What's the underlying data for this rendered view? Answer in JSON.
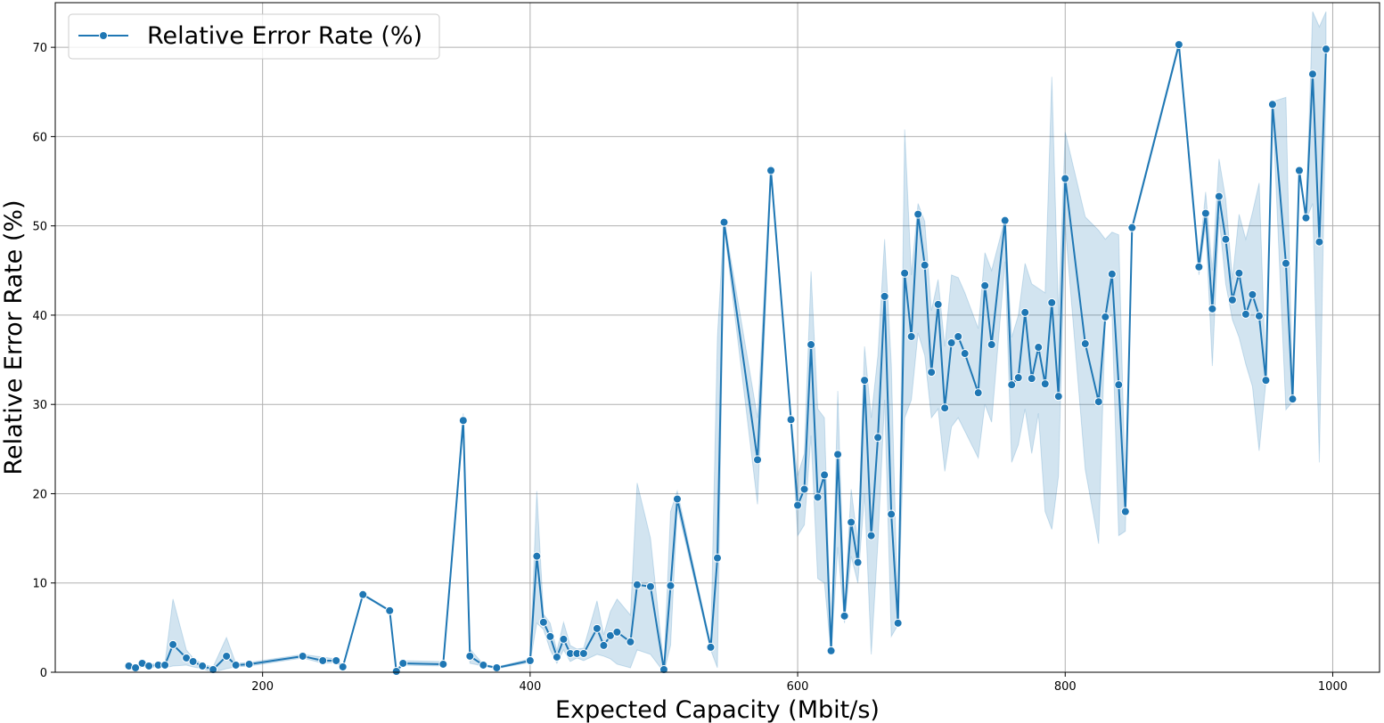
{
  "chart_data": {
    "type": "line",
    "title": "",
    "xlabel": "Expected Capacity (Mbit/s)",
    "ylabel": "Relative Error Rate (%)",
    "xlim": [
      45,
      1035
    ],
    "ylim": [
      0,
      75
    ],
    "xticks": [
      200,
      400,
      600,
      800,
      1000
    ],
    "yticks": [
      0,
      10,
      20,
      30,
      40,
      50,
      60,
      70
    ],
    "grid": true,
    "legend_position": "top-left",
    "colors": {
      "line": "#1f77b4",
      "band": "#1f77b4",
      "grid": "#b0b0b0"
    },
    "series": [
      {
        "name": "Relative Error Rate (%)",
        "points": [
          [
            100,
            0.7
          ],
          [
            105,
            0.5
          ],
          [
            110,
            1.0
          ],
          [
            115,
            0.7
          ],
          [
            122,
            0.8
          ],
          [
            127,
            0.8
          ],
          [
            133,
            3.1
          ],
          [
            143,
            1.6
          ],
          [
            148,
            1.2
          ],
          [
            155,
            0.7
          ],
          [
            163,
            0.3
          ],
          [
            173,
            1.8
          ],
          [
            180,
            0.8
          ],
          [
            190,
            0.9
          ],
          [
            230,
            1.8
          ],
          [
            245,
            1.3
          ],
          [
            255,
            1.3
          ],
          [
            260,
            0.6
          ],
          [
            275,
            8.7
          ],
          [
            295,
            6.9
          ],
          [
            300,
            0.1
          ],
          [
            305,
            1.0
          ],
          [
            335,
            0.9
          ],
          [
            350,
            28.2
          ],
          [
            355,
            1.8
          ],
          [
            365,
            0.8
          ],
          [
            375,
            0.5
          ],
          [
            400,
            1.3
          ],
          [
            405,
            13.0
          ],
          [
            410,
            5.6
          ],
          [
            415,
            4.0
          ],
          [
            420,
            1.7
          ],
          [
            425,
            3.7
          ],
          [
            430,
            2.1
          ],
          [
            435,
            2.1
          ],
          [
            440,
            2.1
          ],
          [
            450,
            4.9
          ],
          [
            455,
            3.0
          ],
          [
            460,
            4.1
          ],
          [
            465,
            4.5
          ],
          [
            475,
            3.4
          ],
          [
            480,
            9.8
          ],
          [
            490,
            9.6
          ],
          [
            500,
            0.3
          ],
          [
            505,
            9.7
          ],
          [
            510,
            19.4
          ],
          [
            535,
            2.8
          ],
          [
            540,
            12.8
          ],
          [
            545,
            50.4
          ],
          [
            570,
            23.8
          ],
          [
            580,
            56.2
          ],
          [
            595,
            28.3
          ],
          [
            600,
            18.7
          ],
          [
            605,
            20.5
          ],
          [
            610,
            36.7
          ],
          [
            615,
            19.6
          ],
          [
            620,
            22.1
          ],
          [
            625,
            2.4
          ],
          [
            630,
            24.4
          ],
          [
            635,
            6.3
          ],
          [
            640,
            16.8
          ],
          [
            645,
            12.3
          ],
          [
            650,
            32.7
          ],
          [
            655,
            15.3
          ],
          [
            660,
            26.3
          ],
          [
            665,
            42.1
          ],
          [
            670,
            17.7
          ],
          [
            675,
            5.5
          ],
          [
            680,
            44.7
          ],
          [
            685,
            37.6
          ],
          [
            690,
            51.3
          ],
          [
            695,
            45.6
          ],
          [
            700,
            33.6
          ],
          [
            705,
            41.2
          ],
          [
            710,
            29.6
          ],
          [
            715,
            36.9
          ],
          [
            720,
            37.6
          ],
          [
            725,
            35.7
          ],
          [
            735,
            31.3
          ],
          [
            740,
            43.3
          ],
          [
            745,
            36.7
          ],
          [
            755,
            50.6
          ],
          [
            760,
            32.2
          ],
          [
            765,
            33.0
          ],
          [
            770,
            40.3
          ],
          [
            775,
            32.9
          ],
          [
            780,
            36.4
          ],
          [
            785,
            32.3
          ],
          [
            790,
            41.4
          ],
          [
            795,
            30.9
          ],
          [
            800,
            55.3
          ],
          [
            815,
            36.8
          ],
          [
            825,
            30.3
          ],
          [
            830,
            39.8
          ],
          [
            835,
            44.6
          ],
          [
            840,
            32.2
          ],
          [
            845,
            18.0
          ],
          [
            850,
            49.8
          ],
          [
            885,
            70.3
          ],
          [
            900,
            45.4
          ],
          [
            905,
            51.4
          ],
          [
            910,
            40.7
          ],
          [
            915,
            53.3
          ],
          [
            920,
            48.5
          ],
          [
            925,
            41.7
          ],
          [
            930,
            44.7
          ],
          [
            935,
            40.1
          ],
          [
            940,
            42.3
          ],
          [
            945,
            39.9
          ],
          [
            950,
            32.7
          ],
          [
            955,
            63.6
          ],
          [
            965,
            45.8
          ],
          [
            970,
            30.6
          ],
          [
            975,
            56.2
          ],
          [
            980,
            50.9
          ],
          [
            985,
            67.0
          ],
          [
            990,
            48.2
          ],
          [
            995,
            69.8
          ]
        ],
        "band": [
          [
            100,
            0.4,
            0.9
          ],
          [
            105,
            0.3,
            0.7
          ],
          [
            110,
            0.6,
            1.2
          ],
          [
            115,
            0.5,
            0.9
          ],
          [
            122,
            0.6,
            1.0
          ],
          [
            127,
            0.5,
            1.0
          ],
          [
            133,
            0.7,
            8.2
          ],
          [
            143,
            0.8,
            2.5
          ],
          [
            148,
            0.6,
            1.6
          ],
          [
            155,
            0.4,
            0.9
          ],
          [
            163,
            0.0,
            0.6
          ],
          [
            173,
            0.4,
            3.9
          ],
          [
            180,
            0.6,
            1.0
          ],
          [
            190,
            0.7,
            1.1
          ],
          [
            230,
            1.6,
            2.0
          ],
          [
            245,
            1.0,
            1.7
          ],
          [
            255,
            1.1,
            1.5
          ],
          [
            260,
            0.5,
            0.7
          ],
          [
            275,
            8.6,
            8.8
          ],
          [
            295,
            6.8,
            7.0
          ],
          [
            300,
            0.0,
            0.2
          ],
          [
            305,
            0.8,
            1.3
          ],
          [
            335,
            0.7,
            1.2
          ],
          [
            350,
            27.5,
            29.0
          ],
          [
            355,
            1.0,
            2.6
          ],
          [
            365,
            0.7,
            0.9
          ],
          [
            375,
            0.4,
            0.6
          ],
          [
            400,
            1.1,
            1.5
          ],
          [
            405,
            5.5,
            20.3
          ],
          [
            410,
            4.8,
            6.5
          ],
          [
            415,
            2.5,
            5.5
          ],
          [
            420,
            1.0,
            2.4
          ],
          [
            425,
            2.5,
            5.6
          ],
          [
            430,
            1.2,
            3.0
          ],
          [
            435,
            1.6,
            2.6
          ],
          [
            440,
            1.3,
            2.7
          ],
          [
            450,
            2.0,
            8.0
          ],
          [
            455,
            1.8,
            4.2
          ],
          [
            460,
            1.5,
            6.8
          ],
          [
            465,
            0.9,
            8.2
          ],
          [
            475,
            0.5,
            6.4
          ],
          [
            480,
            2.5,
            21.2
          ],
          [
            490,
            2.0,
            15.0
          ],
          [
            500,
            0.0,
            0.6
          ],
          [
            505,
            3.0,
            18.0
          ],
          [
            510,
            18.5,
            20.3
          ],
          [
            535,
            2.5,
            3.1
          ],
          [
            540,
            0.5,
            37.5
          ],
          [
            545,
            50.0,
            50.8
          ],
          [
            570,
            18.8,
            28.5
          ],
          [
            580,
            55.5,
            56.8
          ],
          [
            595,
            28.0,
            28.6
          ],
          [
            600,
            15.3,
            22.0
          ],
          [
            605,
            16.5,
            24.5
          ],
          [
            610,
            26.5,
            44.9
          ],
          [
            615,
            10.5,
            29.5
          ],
          [
            620,
            10.0,
            28.5
          ],
          [
            625,
            2.1,
            2.7
          ],
          [
            630,
            14.0,
            31.5
          ],
          [
            635,
            5.5,
            7.0
          ],
          [
            640,
            13.0,
            20.5
          ],
          [
            645,
            10.0,
            14.5
          ],
          [
            650,
            20.0,
            36.5
          ],
          [
            655,
            2.0,
            28.5
          ],
          [
            660,
            14.5,
            35.5
          ],
          [
            665,
            30.5,
            48.5
          ],
          [
            670,
            4.0,
            34.5
          ],
          [
            675,
            5.3,
            5.7
          ],
          [
            680,
            28.5,
            60.8
          ],
          [
            685,
            30.5,
            44.5
          ],
          [
            690,
            38.0,
            52.5
          ],
          [
            695,
            35.5,
            50.5
          ],
          [
            700,
            28.5,
            40.5
          ],
          [
            705,
            29.5,
            44.0
          ],
          [
            710,
            22.5,
            36.5
          ],
          [
            715,
            27.5,
            44.5
          ],
          [
            720,
            28.5,
            44.2
          ],
          [
            725,
            27.0,
            42.5
          ],
          [
            735,
            24.0,
            38.5
          ],
          [
            740,
            30.0,
            47.0
          ],
          [
            745,
            28.0,
            45.0
          ],
          [
            755,
            46.0,
            50.8
          ],
          [
            760,
            23.5,
            37.5
          ],
          [
            765,
            25.5,
            40.0
          ],
          [
            770,
            29.5,
            45.8
          ],
          [
            775,
            24.5,
            43.5
          ],
          [
            780,
            29.0,
            43.0
          ],
          [
            785,
            18.0,
            42.5
          ],
          [
            790,
            16.0,
            66.7
          ],
          [
            795,
            22.0,
            40.0
          ],
          [
            800,
            50.0,
            60.5
          ],
          [
            815,
            22.7,
            51.0
          ],
          [
            825,
            14.4,
            49.5
          ],
          [
            830,
            39.5,
            48.5
          ],
          [
            835,
            40.0,
            49.3
          ],
          [
            840,
            15.3,
            49.0
          ],
          [
            845,
            15.8,
            20.5
          ],
          [
            850,
            49.5,
            50.1
          ],
          [
            885,
            70.0,
            70.6
          ],
          [
            900,
            44.5,
            46.2
          ],
          [
            905,
            50.0,
            53.8
          ],
          [
            910,
            34.3,
            45.0
          ],
          [
            915,
            51.0,
            57.5
          ],
          [
            920,
            43.5,
            53.0
          ],
          [
            925,
            39.5,
            44.0
          ],
          [
            930,
            37.5,
            51.3
          ],
          [
            935,
            34.5,
            48.5
          ],
          [
            940,
            32.0,
            51.5
          ],
          [
            945,
            24.8,
            54.8
          ],
          [
            950,
            32.4,
            33.0
          ],
          [
            955,
            63.3,
            63.9
          ],
          [
            965,
            29.4,
            64.4
          ],
          [
            970,
            30.3,
            30.9
          ],
          [
            975,
            55.9,
            56.5
          ],
          [
            980,
            50.6,
            51.2
          ],
          [
            985,
            52.5,
            74.0
          ],
          [
            990,
            23.5,
            72.3
          ],
          [
            995,
            66.0,
            74.0
          ]
        ]
      }
    ]
  }
}
